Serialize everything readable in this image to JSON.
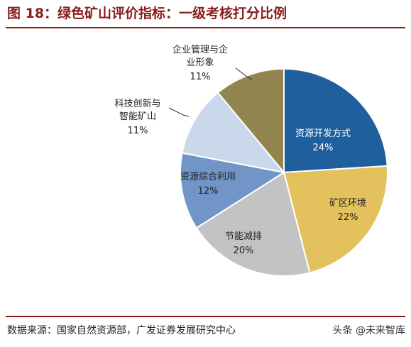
{
  "figure": {
    "title": "图 18：绿色矿山评价指标：一级考核打分比例",
    "source": "数据来源：国家自然资源部，广发证券发展研究中心",
    "watermark": "头条 @未来智库"
  },
  "chart_data": {
    "type": "pie",
    "title": "图 18：绿色矿山评价指标：一级考核打分比例",
    "slices": [
      {
        "label": "资源开发方式",
        "value": 24,
        "pct_label": "24%",
        "color": "#1f5f9e",
        "text_color": "#ffffff"
      },
      {
        "label": "矿区环境",
        "value": 22,
        "pct_label": "22%",
        "color": "#e3c25e",
        "text_color": "#222222"
      },
      {
        "label": "节能减排",
        "value": 20,
        "pct_label": "20%",
        "color": "#c3c3c3",
        "text_color": "#222222"
      },
      {
        "label": "资源综合利用",
        "value": 12,
        "pct_label": "12%",
        "color": "#7095c6",
        "text_color": "#222222"
      },
      {
        "label": "科技创新与智能矿山",
        "value": 11,
        "pct_label": "11%",
        "color": "#c9d8ea",
        "text_color": "#222222"
      },
      {
        "label": "企业管理与企业形象",
        "value": 11,
        "pct_label": "11%",
        "color": "#938550",
        "text_color": "#222222"
      }
    ]
  }
}
